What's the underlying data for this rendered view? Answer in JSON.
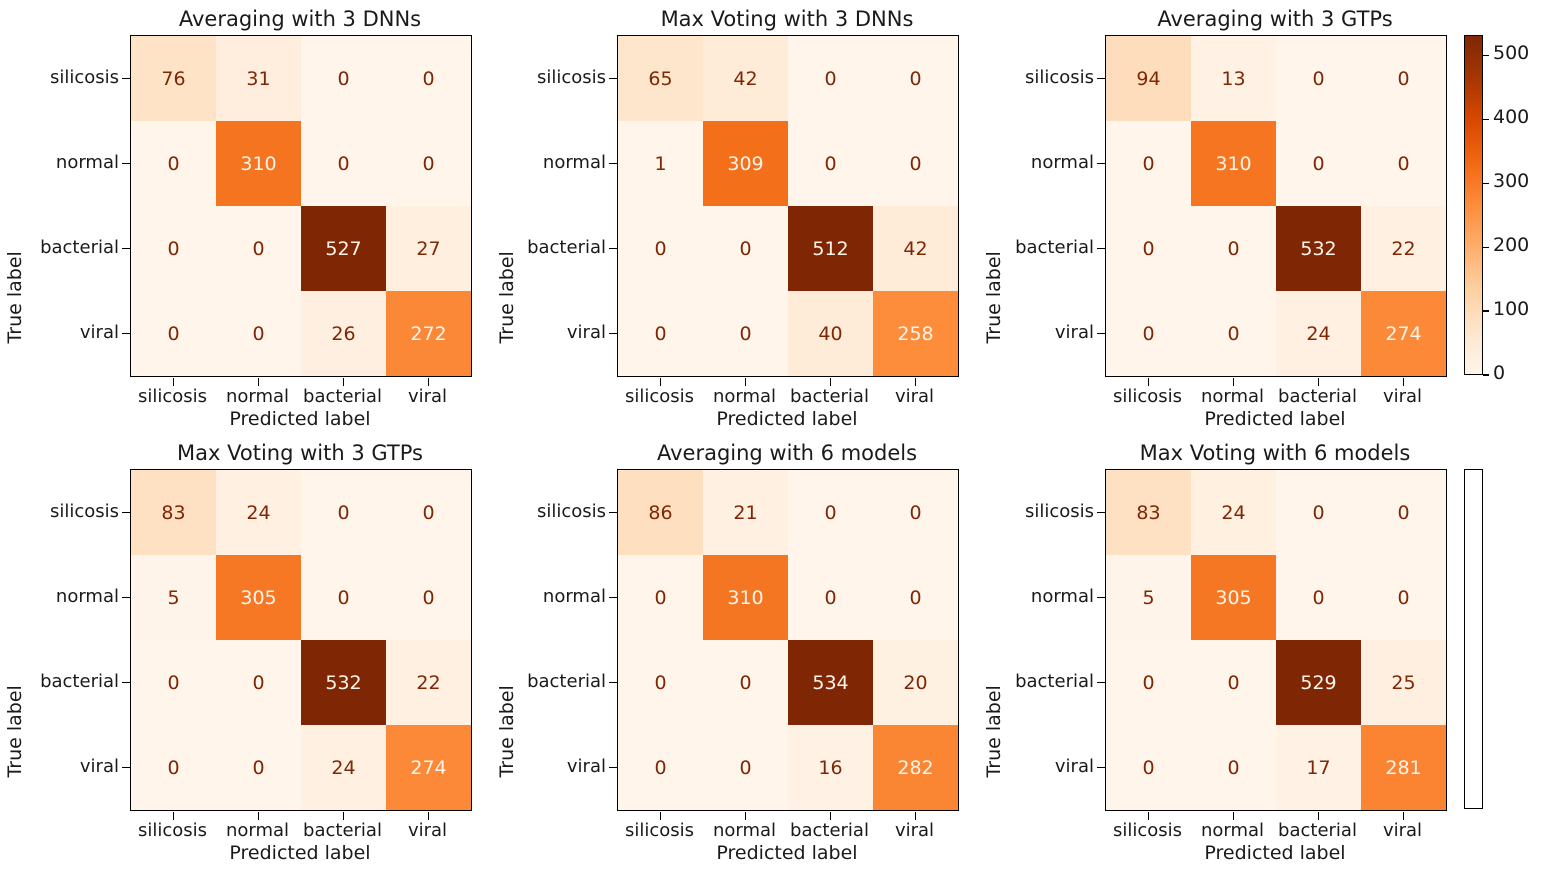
{
  "figure": {
    "background": "#ffffff",
    "xlabel": "Predicted label",
    "ylabel": "True label",
    "classes": [
      "silicosis",
      "normal",
      "bacterial",
      "viral"
    ],
    "colorbar_ticks": [
      0,
      100,
      200,
      300,
      400,
      500
    ],
    "colormap": {
      "name": "Oranges",
      "anchors": [
        "#fff5eb",
        "#fee6ce",
        "#fdd0a2",
        "#fdae6b",
        "#fd8d3c",
        "#f16913",
        "#d94801",
        "#a63603",
        "#7f2704"
      ],
      "text_light": "#fff5eb",
      "text_dark": "#7f2704",
      "spine": "#000000"
    }
  },
  "chart_data": [
    {
      "type": "heatmap",
      "title": "Averaging with 3 DNNs",
      "x": [
        "silicosis",
        "normal",
        "bacterial",
        "viral"
      ],
      "y": [
        "silicosis",
        "normal",
        "bacterial",
        "viral"
      ],
      "xlabel": "Predicted label",
      "ylabel": "True label",
      "values": [
        [
          76,
          31,
          0,
          0
        ],
        [
          0,
          310,
          0,
          0
        ],
        [
          0,
          0,
          527,
          27
        ],
        [
          0,
          0,
          26,
          272
        ]
      ],
      "colorbar": false
    },
    {
      "type": "heatmap",
      "title": "Max Voting with 3 DNNs",
      "x": [
        "silicosis",
        "normal",
        "bacterial",
        "viral"
      ],
      "y": [
        "silicosis",
        "normal",
        "bacterial",
        "viral"
      ],
      "xlabel": "Predicted label",
      "ylabel": "True label",
      "values": [
        [
          65,
          42,
          0,
          0
        ],
        [
          1,
          309,
          0,
          0
        ],
        [
          0,
          0,
          512,
          42
        ],
        [
          0,
          0,
          40,
          258
        ]
      ],
      "colorbar": false
    },
    {
      "type": "heatmap",
      "title": "Averaging with 3 GTPs",
      "x": [
        "silicosis",
        "normal",
        "bacterial",
        "viral"
      ],
      "y": [
        "silicosis",
        "normal",
        "bacterial",
        "viral"
      ],
      "xlabel": "Predicted label",
      "ylabel": "True label",
      "values": [
        [
          94,
          13,
          0,
          0
        ],
        [
          0,
          310,
          0,
          0
        ],
        [
          0,
          0,
          532,
          22
        ],
        [
          0,
          0,
          24,
          274
        ]
      ],
      "colorbar": true
    },
    {
      "type": "heatmap",
      "title": "Max Voting with 3 GTPs",
      "x": [
        "silicosis",
        "normal",
        "bacterial",
        "viral"
      ],
      "y": [
        "silicosis",
        "normal",
        "bacterial",
        "viral"
      ],
      "xlabel": "Predicted label",
      "ylabel": "True label",
      "values": [
        [
          83,
          24,
          0,
          0
        ],
        [
          5,
          305,
          0,
          0
        ],
        [
          0,
          0,
          532,
          22
        ],
        [
          0,
          0,
          24,
          274
        ]
      ],
      "colorbar": false
    },
    {
      "type": "heatmap",
      "title": "Averaging with 6 models",
      "x": [
        "silicosis",
        "normal",
        "bacterial",
        "viral"
      ],
      "y": [
        "silicosis",
        "normal",
        "bacterial",
        "viral"
      ],
      "xlabel": "Predicted label",
      "ylabel": "True label",
      "values": [
        [
          86,
          21,
          0,
          0
        ],
        [
          0,
          310,
          0,
          0
        ],
        [
          0,
          0,
          534,
          20
        ],
        [
          0,
          0,
          16,
          282
        ]
      ],
      "colorbar": false
    },
    {
      "type": "heatmap",
      "title": "Max Voting with 6 models",
      "x": [
        "silicosis",
        "normal",
        "bacterial",
        "viral"
      ],
      "y": [
        "silicosis",
        "normal",
        "bacterial",
        "viral"
      ],
      "xlabel": "Predicted label",
      "ylabel": "True label",
      "values": [
        [
          83,
          24,
          0,
          0
        ],
        [
          5,
          305,
          0,
          0
        ],
        [
          0,
          0,
          529,
          25
        ],
        [
          0,
          0,
          17,
          281
        ]
      ],
      "colorbar": false
    }
  ]
}
